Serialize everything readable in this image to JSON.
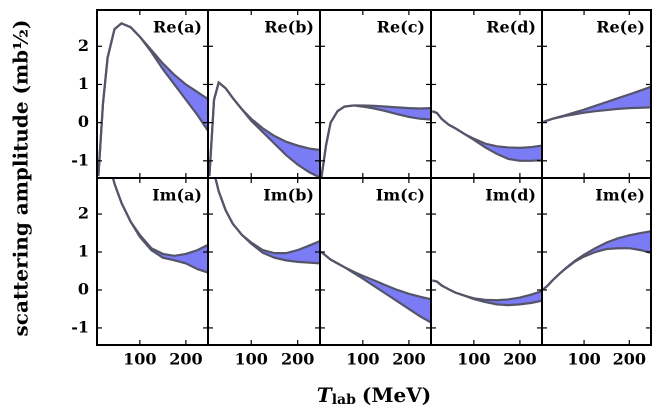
{
  "chart_data": {
    "type": "band",
    "ylabel": "scattering amplitude (mb½)",
    "xlabel": {
      "symbol": "T",
      "subscript": "lab",
      "unit": "(MeV)"
    },
    "fill_color": "#7b7bf5",
    "line_color": "#55556a",
    "x": [
      10,
      20,
      30,
      45,
      60,
      80,
      100,
      125,
      150,
      175,
      200,
      225,
      250
    ],
    "xlim": [
      7,
      248
    ],
    "ylim": [
      -1.45,
      2.95
    ],
    "xticks": [
      100,
      200
    ],
    "yticks": [
      -1,
      0,
      1,
      2
    ],
    "panels": [
      {
        "label": "Re(a)",
        "upper": [
          -1.4,
          0.5,
          1.7,
          2.45,
          2.6,
          2.5,
          2.25,
          1.9,
          1.55,
          1.25,
          1.0,
          0.8,
          0.6
        ],
        "lower": [
          -1.4,
          0.5,
          1.7,
          2.45,
          2.6,
          2.5,
          2.25,
          1.85,
          1.4,
          1.0,
          0.6,
          0.2,
          -0.25
        ]
      },
      {
        "label": "Re(b)",
        "upper": [
          -1.4,
          0.6,
          1.05,
          0.9,
          0.65,
          0.35,
          0.1,
          -0.15,
          -0.35,
          -0.5,
          -0.6,
          -0.68,
          -0.72
        ],
        "lower": [
          -1.4,
          0.6,
          1.05,
          0.9,
          0.65,
          0.35,
          0.05,
          -0.25,
          -0.55,
          -0.85,
          -1.1,
          -1.3,
          -1.45
        ]
      },
      {
        "label": "Re(c)",
        "upper": [
          -1.45,
          -0.6,
          0.0,
          0.3,
          0.42,
          0.45,
          0.45,
          0.44,
          0.42,
          0.4,
          0.38,
          0.37,
          0.38
        ],
        "lower": [
          -1.45,
          -0.6,
          0.0,
          0.3,
          0.42,
          0.45,
          0.42,
          0.37,
          0.3,
          0.22,
          0.15,
          0.1,
          0.08
        ]
      },
      {
        "label": "Re(d)",
        "upper": [
          0.3,
          0.25,
          0.1,
          -0.05,
          -0.15,
          -0.3,
          -0.42,
          -0.55,
          -0.62,
          -0.65,
          -0.66,
          -0.64,
          -0.6
        ],
        "lower": [
          0.3,
          0.25,
          0.1,
          -0.05,
          -0.15,
          -0.3,
          -0.45,
          -0.65,
          -0.82,
          -0.95,
          -1.0,
          -1.0,
          -0.98
        ]
      },
      {
        "label": "Re(e)",
        "upper": [
          0.02,
          0.06,
          0.1,
          0.15,
          0.2,
          0.27,
          0.34,
          0.44,
          0.54,
          0.64,
          0.74,
          0.84,
          0.95
        ],
        "lower": [
          0.02,
          0.06,
          0.1,
          0.14,
          0.18,
          0.22,
          0.26,
          0.3,
          0.33,
          0.36,
          0.38,
          0.39,
          0.4
        ]
      },
      {
        "label": "Im(a)",
        "upper": [
          5,
          4.2,
          3.5,
          2.8,
          2.3,
          1.8,
          1.45,
          1.1,
          0.95,
          0.9,
          0.95,
          1.05,
          1.2
        ],
        "lower": [
          5,
          4.2,
          3.5,
          2.8,
          2.3,
          1.8,
          1.4,
          1.05,
          0.85,
          0.78,
          0.7,
          0.55,
          0.45
        ]
      },
      {
        "label": "Im(b)",
        "upper": [
          4,
          3.1,
          2.6,
          2.1,
          1.75,
          1.45,
          1.25,
          1.05,
          0.97,
          0.97,
          1.05,
          1.17,
          1.3
        ],
        "lower": [
          4,
          3.1,
          2.6,
          2.1,
          1.75,
          1.45,
          1.22,
          0.98,
          0.85,
          0.78,
          0.74,
          0.72,
          0.7
        ]
      },
      {
        "label": "Im(c)",
        "upper": [
          1.0,
          0.9,
          0.8,
          0.7,
          0.6,
          0.48,
          0.37,
          0.25,
          0.12,
          0.0,
          -0.1,
          -0.18,
          -0.25
        ],
        "lower": [
          1.0,
          0.9,
          0.8,
          0.7,
          0.6,
          0.45,
          0.3,
          0.1,
          -0.1,
          -0.3,
          -0.5,
          -0.7,
          -0.87
        ]
      },
      {
        "label": "Im(d)",
        "upper": [
          0.25,
          0.22,
          0.12,
          0.02,
          -0.07,
          -0.15,
          -0.22,
          -0.26,
          -0.27,
          -0.25,
          -0.2,
          -0.12,
          -0.02
        ],
        "lower": [
          0.25,
          0.22,
          0.12,
          0.02,
          -0.07,
          -0.15,
          -0.24,
          -0.32,
          -0.38,
          -0.4,
          -0.38,
          -0.34,
          -0.28
        ]
      },
      {
        "label": "Im(e)",
        "upper": [
          0.02,
          0.12,
          0.25,
          0.42,
          0.58,
          0.77,
          0.93,
          1.1,
          1.25,
          1.36,
          1.44,
          1.5,
          1.55
        ],
        "lower": [
          0.02,
          0.12,
          0.25,
          0.42,
          0.57,
          0.75,
          0.88,
          1.0,
          1.08,
          1.1,
          1.1,
          1.05,
          0.97
        ]
      }
    ]
  }
}
